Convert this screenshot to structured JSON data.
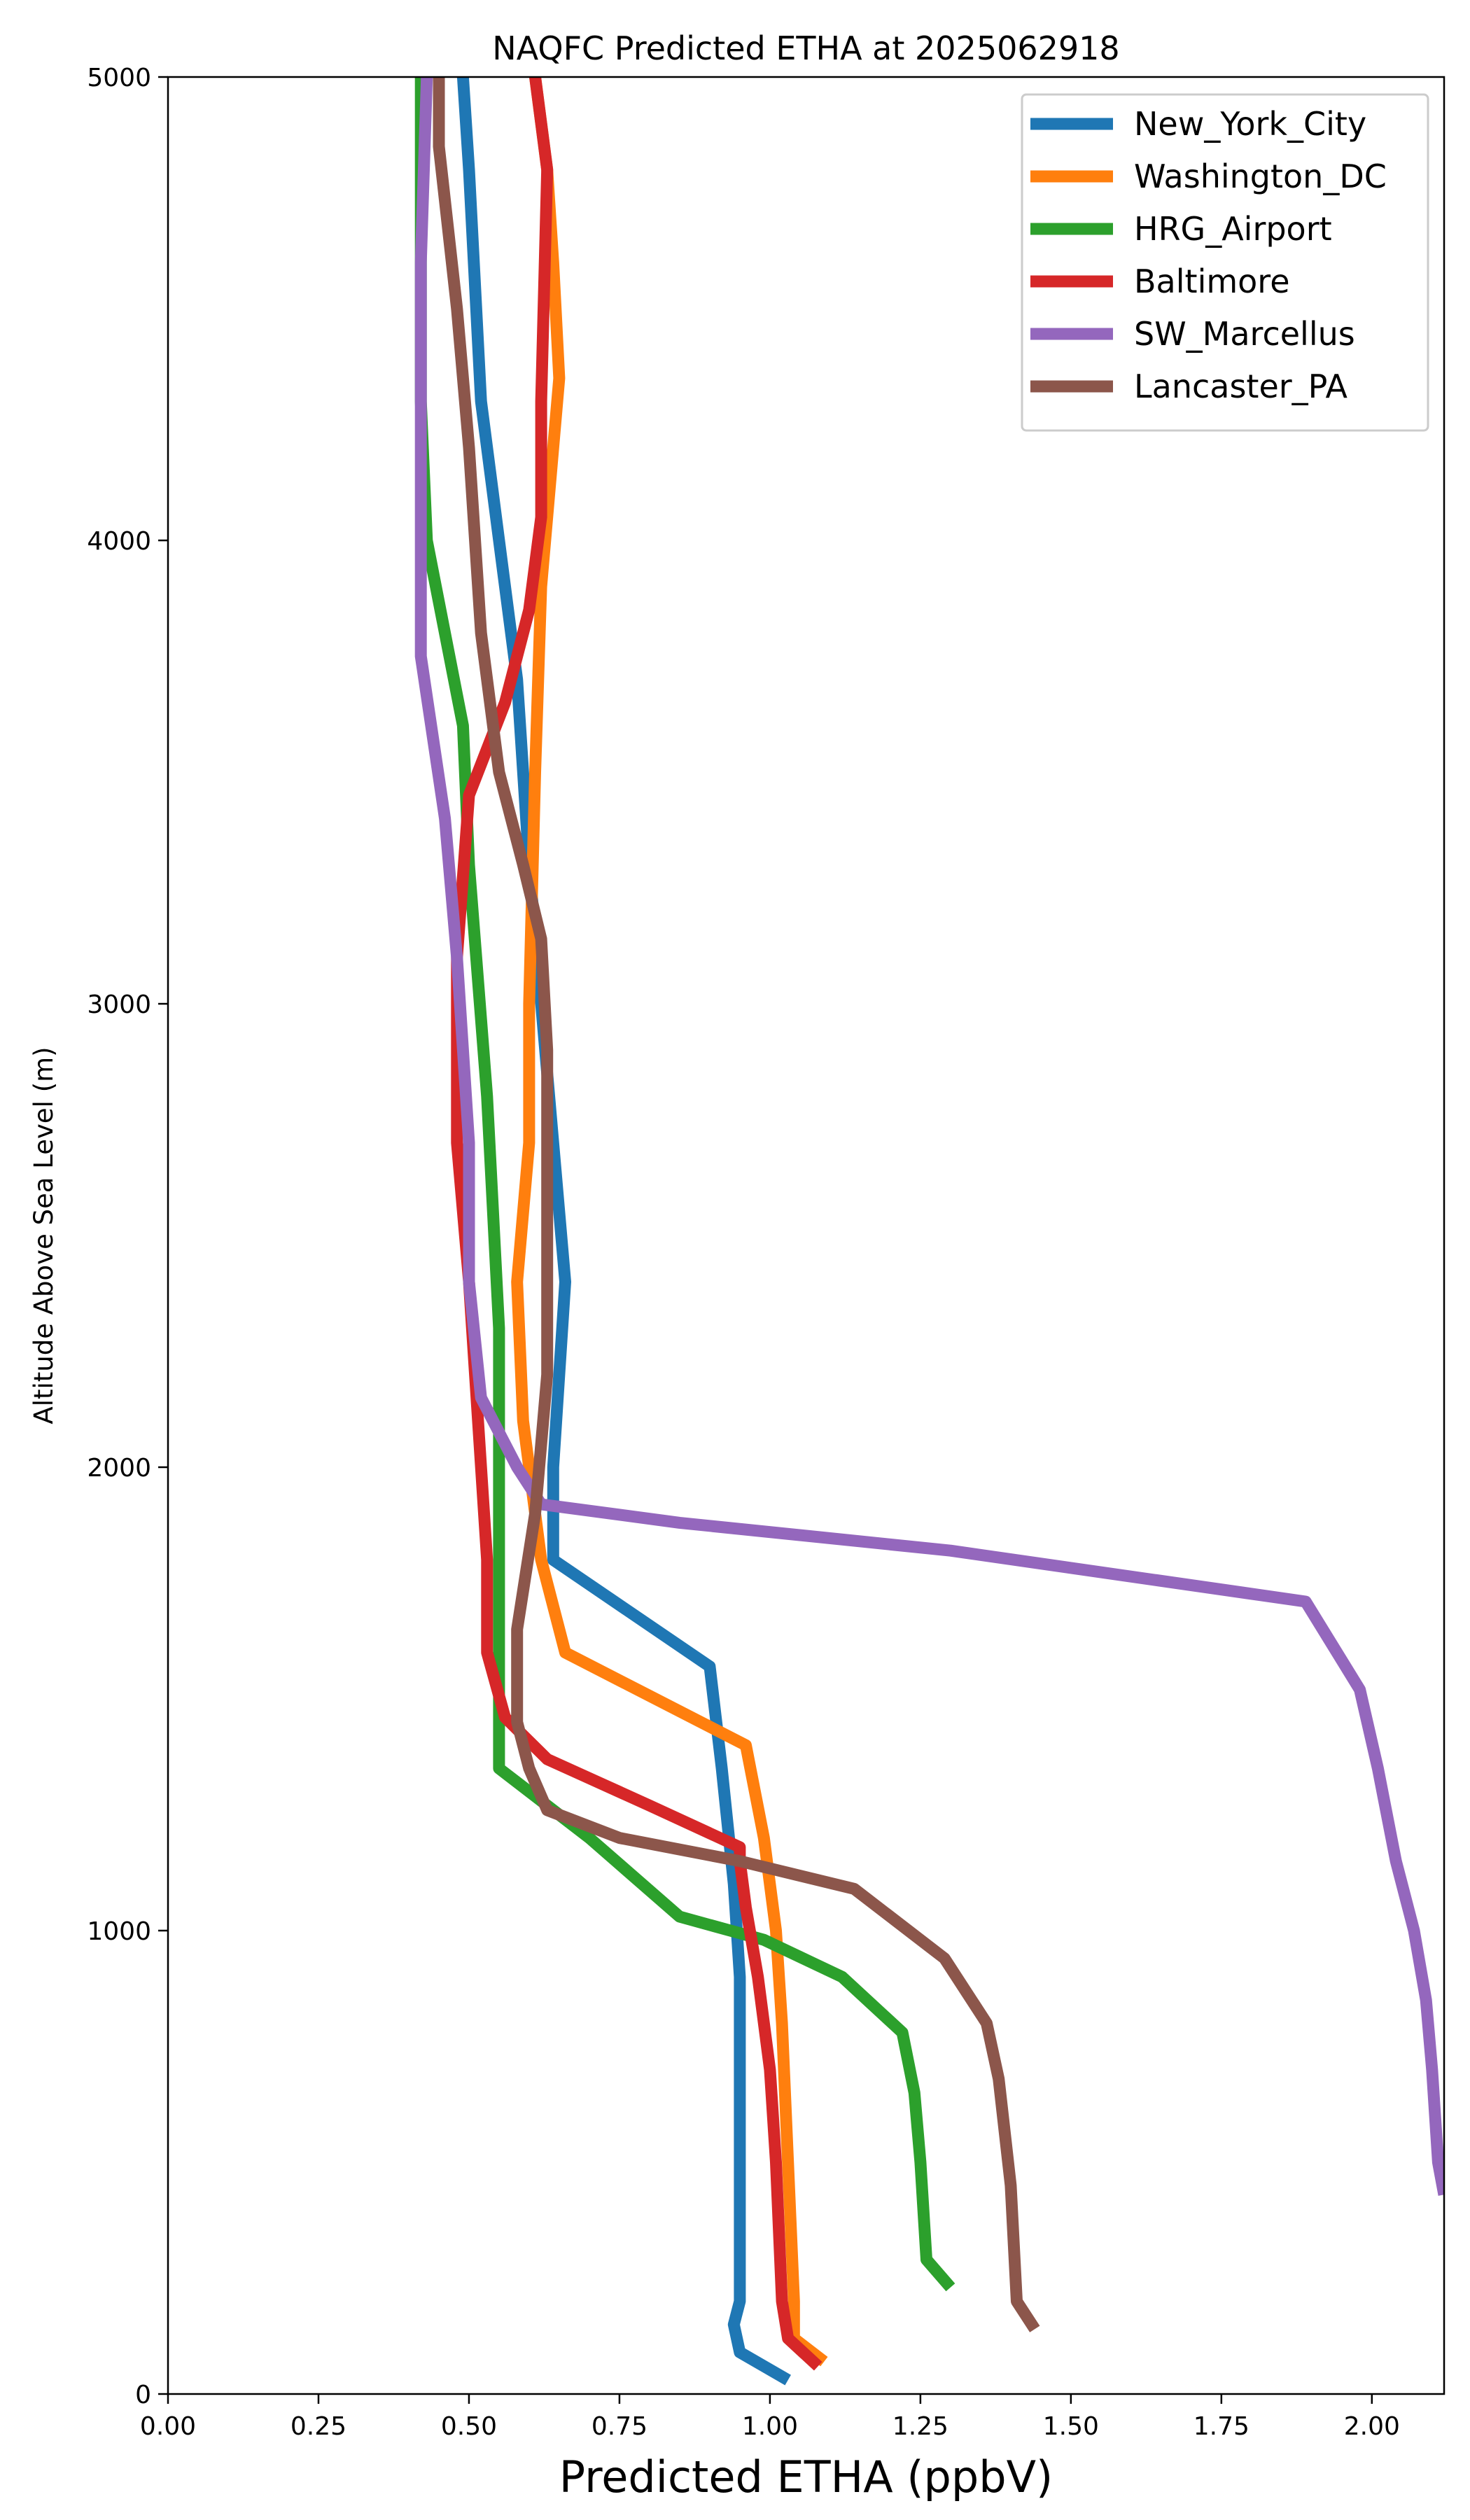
{
  "chart_data": {
    "type": "line",
    "title": "NAQFC Predicted ETHA at 2025062918",
    "xlabel": "Predicted ETHA (ppbV)",
    "ylabel": "Altitude Above Sea Level (m)",
    "xlim": [
      0,
      2.12
    ],
    "ylim": [
      0,
      5000
    ],
    "xticks": [
      "0.00",
      "0.25",
      "0.50",
      "0.75",
      "1.00",
      "1.25",
      "1.50",
      "1.75",
      "2.00"
    ],
    "yticks": [
      "0",
      "1000",
      "2000",
      "3000",
      "4000",
      "5000"
    ],
    "grid": false,
    "legend_position": "top-right",
    "series": [
      {
        "name": "New_York_City",
        "color": "#1f77b4",
        "points": [
          [
            1.03,
            30
          ],
          [
            0.95,
            90
          ],
          [
            0.94,
            150
          ],
          [
            0.95,
            200
          ],
          [
            0.95,
            300
          ],
          [
            0.95,
            500
          ],
          [
            0.95,
            700
          ],
          [
            0.95,
            900
          ],
          [
            0.94,
            1100
          ],
          [
            0.92,
            1350
          ],
          [
            0.9,
            1570
          ],
          [
            0.64,
            1800
          ],
          [
            0.64,
            2000
          ],
          [
            0.66,
            2400
          ],
          [
            0.64,
            2700
          ],
          [
            0.62,
            3000
          ],
          [
            0.6,
            3300
          ],
          [
            0.58,
            3700
          ],
          [
            0.55,
            4000
          ],
          [
            0.52,
            4300
          ],
          [
            0.5,
            4800
          ],
          [
            0.49,
            5000
          ]
        ]
      },
      {
        "name": "Washington_DC",
        "color": "#ff7f0e",
        "points": [
          [
            1.09,
            70
          ],
          [
            1.04,
            120
          ],
          [
            1.04,
            200
          ],
          [
            1.03,
            500
          ],
          [
            1.02,
            800
          ],
          [
            1.01,
            1000
          ],
          [
            0.99,
            1200
          ],
          [
            0.96,
            1400
          ],
          [
            0.66,
            1600
          ],
          [
            0.62,
            1800
          ],
          [
            0.59,
            2100
          ],
          [
            0.58,
            2400
          ],
          [
            0.6,
            2700
          ],
          [
            0.6,
            3000
          ],
          [
            0.61,
            3500
          ],
          [
            0.62,
            3900
          ],
          [
            0.65,
            4350
          ],
          [
            0.64,
            4600
          ],
          [
            0.63,
            4800
          ],
          [
            0.61,
            5000
          ]
        ]
      },
      {
        "name": "HRG_Airport",
        "color": "#2ca02c",
        "points": [
          [
            1.3,
            230
          ],
          [
            1.26,
            290
          ],
          [
            1.25,
            500
          ],
          [
            1.24,
            650
          ],
          [
            1.22,
            780
          ],
          [
            1.12,
            900
          ],
          [
            0.99,
            980
          ],
          [
            0.85,
            1030
          ],
          [
            0.7,
            1200
          ],
          [
            0.55,
            1350
          ],
          [
            0.55,
            1600
          ],
          [
            0.55,
            2000
          ],
          [
            0.55,
            2300
          ],
          [
            0.53,
            2800
          ],
          [
            0.5,
            3300
          ],
          [
            0.49,
            3600
          ],
          [
            0.43,
            4000
          ],
          [
            0.42,
            4300
          ],
          [
            0.42,
            4600
          ],
          [
            0.42,
            5000
          ]
        ]
      },
      {
        "name": "Baltimore",
        "color": "#d62728",
        "points": [
          [
            1.08,
            60
          ],
          [
            1.03,
            120
          ],
          [
            1.02,
            200
          ],
          [
            1.01,
            500
          ],
          [
            1.0,
            700
          ],
          [
            0.98,
            900
          ],
          [
            0.96,
            1050
          ],
          [
            0.95,
            1150
          ],
          [
            0.95,
            1180
          ],
          [
            0.8,
            1270
          ],
          [
            0.63,
            1370
          ],
          [
            0.56,
            1460
          ],
          [
            0.53,
            1600
          ],
          [
            0.53,
            1800
          ],
          [
            0.5,
            2400
          ],
          [
            0.48,
            2700
          ],
          [
            0.48,
            3100
          ],
          [
            0.5,
            3450
          ],
          [
            0.56,
            3650
          ],
          [
            0.6,
            3850
          ],
          [
            0.62,
            4050
          ],
          [
            0.62,
            4300
          ],
          [
            0.63,
            4800
          ],
          [
            0.61,
            5000
          ]
        ]
      },
      {
        "name": "SW_Marcellus",
        "color": "#9467bd",
        "points": [
          [
            2.12,
            430
          ],
          [
            2.11,
            500
          ],
          [
            2.1,
            700
          ],
          [
            2.09,
            850
          ],
          [
            2.07,
            1000
          ],
          [
            2.04,
            1150
          ],
          [
            2.01,
            1350
          ],
          [
            1.98,
            1520
          ],
          [
            1.89,
            1710
          ],
          [
            1.3,
            1820
          ],
          [
            0.85,
            1880
          ],
          [
            0.62,
            1920
          ],
          [
            0.58,
            2000
          ],
          [
            0.52,
            2150
          ],
          [
            0.5,
            2400
          ],
          [
            0.5,
            2700
          ],
          [
            0.48,
            3100
          ],
          [
            0.46,
            3400
          ],
          [
            0.42,
            3750
          ],
          [
            0.42,
            4100
          ],
          [
            0.42,
            4600
          ],
          [
            0.43,
            5000
          ]
        ]
      },
      {
        "name": "Lancaster_PA",
        "color": "#8c564b",
        "points": [
          [
            1.44,
            140
          ],
          [
            1.41,
            200
          ],
          [
            1.4,
            450
          ],
          [
            1.38,
            680
          ],
          [
            1.36,
            800
          ],
          [
            1.29,
            940
          ],
          [
            1.14,
            1090
          ],
          [
            0.95,
            1150
          ],
          [
            0.75,
            1200
          ],
          [
            0.63,
            1260
          ],
          [
            0.6,
            1350
          ],
          [
            0.58,
            1450
          ],
          [
            0.58,
            1650
          ],
          [
            0.61,
            1900
          ],
          [
            0.63,
            2200
          ],
          [
            0.63,
            2500
          ],
          [
            0.63,
            2900
          ],
          [
            0.62,
            3140
          ],
          [
            0.59,
            3300
          ],
          [
            0.55,
            3500
          ],
          [
            0.52,
            3800
          ],
          [
            0.5,
            4200
          ],
          [
            0.48,
            4500
          ],
          [
            0.45,
            4850
          ],
          [
            0.45,
            5000
          ]
        ]
      }
    ]
  }
}
